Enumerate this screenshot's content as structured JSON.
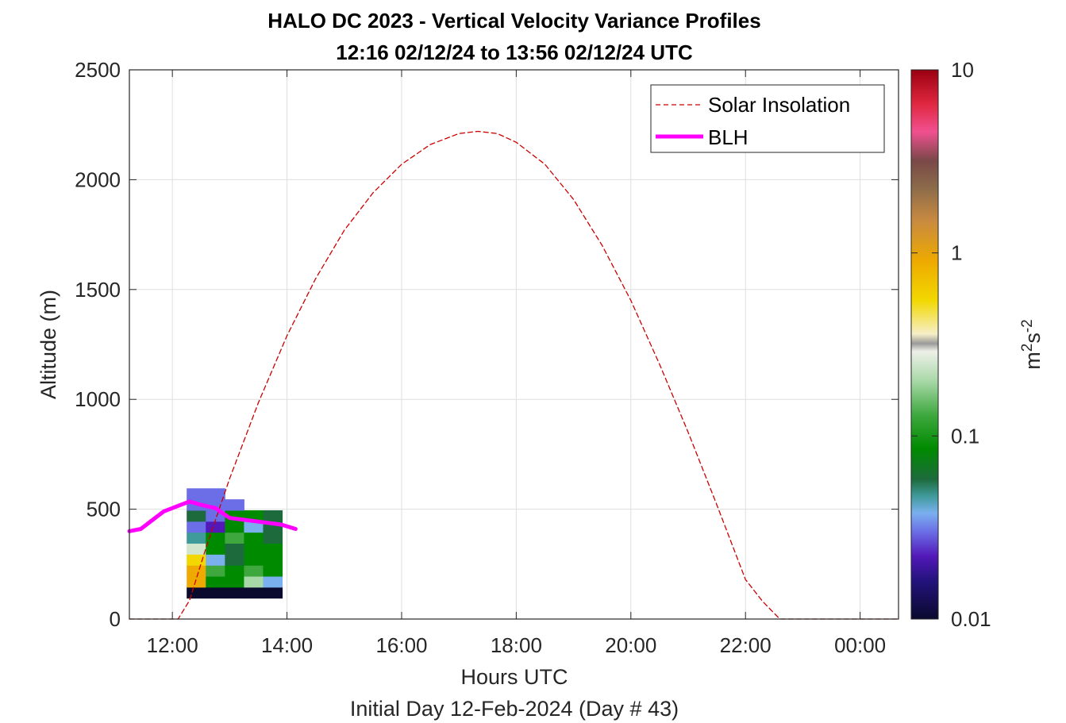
{
  "chart_data": {
    "type": "heatmap",
    "title": "HALO DC 2023 - Vertical Velocity Variance Profiles",
    "subtitle": "12:16 02/12/24 to 13:56 02/12/24  UTC",
    "xlabel": "Hours UTC",
    "xlabel2": "Initial Day 12-Feb-2024 (Day # 43)",
    "ylabel": "Altitude (m)",
    "xlim": [
      11.25,
      24.67
    ],
    "ylim": [
      0,
      2500
    ],
    "grid": true,
    "legend_position": "top-right",
    "x_ticks": [
      {
        "value": 12,
        "label": "12:00"
      },
      {
        "value": 14,
        "label": "14:00"
      },
      {
        "value": 16,
        "label": "16:00"
      },
      {
        "value": 18,
        "label": "18:00"
      },
      {
        "value": 20,
        "label": "20:00"
      },
      {
        "value": 22,
        "label": "22:00"
      },
      {
        "value": 24,
        "label": "00:00"
      }
    ],
    "y_ticks": [
      {
        "value": 0,
        "label": "0"
      },
      {
        "value": 500,
        "label": "500"
      },
      {
        "value": 1000,
        "label": "1000"
      },
      {
        "value": 1500,
        "label": "1500"
      },
      {
        "value": 2000,
        "label": "2000"
      },
      {
        "value": 2500,
        "label": "2500"
      }
    ],
    "colorbar": {
      "scale": "log",
      "range": [
        0.01,
        10
      ],
      "label": "m²s⁻²",
      "ticks": [
        {
          "value": 0.01,
          "label": "0.01"
        },
        {
          "value": 0.1,
          "label": "0.1"
        },
        {
          "value": 1,
          "label": "1"
        },
        {
          "value": 10,
          "label": "10"
        }
      ],
      "stops": [
        {
          "v": 0.01,
          "color": "#0a0a2e"
        },
        {
          "v": 0.016,
          "color": "#22127a"
        },
        {
          "v": 0.022,
          "color": "#5218b8"
        },
        {
          "v": 0.03,
          "color": "#6b6ee6"
        },
        {
          "v": 0.038,
          "color": "#7ab0ee"
        },
        {
          "v": 0.047,
          "color": "#3f9a9a"
        },
        {
          "v": 0.058,
          "color": "#1d6b3c"
        },
        {
          "v": 0.085,
          "color": "#008a00"
        },
        {
          "v": 0.13,
          "color": "#3ea83e"
        },
        {
          "v": 0.2,
          "color": "#a8d8a8"
        },
        {
          "v": 0.29,
          "color": "#eef0e8"
        },
        {
          "v": 0.32,
          "color": "#9a9a9a"
        },
        {
          "v": 0.36,
          "color": "#f6eec8"
        },
        {
          "v": 0.55,
          "color": "#f2d800"
        },
        {
          "v": 0.9,
          "color": "#eeaa00"
        },
        {
          "v": 1.5,
          "color": "#c88a40"
        },
        {
          "v": 2.3,
          "color": "#8a6a4a"
        },
        {
          "v": 3.2,
          "color": "#7a4848"
        },
        {
          "v": 4.6,
          "color": "#f05090"
        },
        {
          "v": 6.5,
          "color": "#e02840"
        },
        {
          "v": 10,
          "color": "#9a0010"
        }
      ]
    },
    "series": [
      {
        "name": "Solar Insolation",
        "style": "dashed",
        "color": "#cc0000",
        "x": [
          11.25,
          12.1,
          12.3,
          12.6,
          13.0,
          13.5,
          14.0,
          14.5,
          15.0,
          15.5,
          16.0,
          16.5,
          17.0,
          17.33,
          17.67,
          18.0,
          18.5,
          19.0,
          19.5,
          20.0,
          20.5,
          21.0,
          21.5,
          22.0,
          22.3,
          22.6,
          23.0,
          24.0,
          24.67
        ],
        "y": [
          0,
          0,
          85,
          335,
          640,
          985,
          1290,
          1550,
          1770,
          1940,
          2070,
          2160,
          2210,
          2220,
          2210,
          2170,
          2070,
          1910,
          1700,
          1450,
          1160,
          850,
          520,
          180,
          80,
          0,
          0,
          0,
          0
        ]
      },
      {
        "name": "BLH",
        "style": "solid",
        "color": "#ff00ff",
        "x": [
          11.25,
          11.45,
          11.65,
          11.85,
          12.05,
          12.3,
          12.5,
          12.75,
          13.0,
          13.3,
          13.6,
          13.9,
          14.15
        ],
        "y": [
          400,
          410,
          450,
          490,
          510,
          535,
          520,
          505,
          460,
          450,
          440,
          430,
          410
        ]
      }
    ],
    "heatmap": {
      "x_edges": [
        12.25,
        12.583,
        12.917,
        13.25,
        13.583,
        13.917
      ],
      "y_edges": [
        95,
        145,
        195,
        245,
        295,
        345,
        395,
        445,
        495,
        545,
        595
      ],
      "values": [
        [
          0.01,
          0.01,
          0.01,
          0.01,
          0.01
        ],
        [
          0.9,
          0.085,
          0.085,
          0.2,
          0.038
        ],
        [
          0.9,
          0.13,
          0.085,
          0.13,
          0.085
        ],
        [
          0.55,
          0.038,
          0.058,
          0.085,
          0.085
        ],
        [
          0.25,
          0.085,
          0.058,
          0.085,
          0.085
        ],
        [
          0.047,
          0.085,
          0.13,
          0.085,
          0.058
        ],
        [
          0.03,
          0.022,
          0.085,
          0.038,
          0.058
        ],
        [
          0.058,
          0.03,
          0.085,
          0.085,
          0.058
        ],
        [
          0.03,
          0.03,
          0.03,
          null,
          null
        ],
        [
          0.03,
          0.03,
          null,
          null,
          null
        ]
      ]
    }
  }
}
